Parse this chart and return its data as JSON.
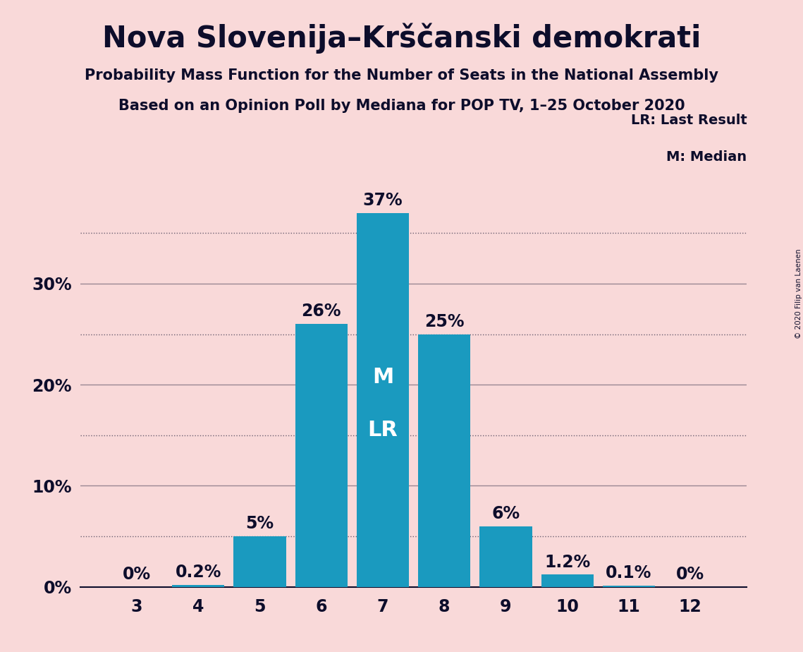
{
  "title": "Nova Slovenija–Krščanski demokrati",
  "subtitle1": "Probability Mass Function for the Number of Seats in the National Assembly",
  "subtitle2": "Based on an Opinion Poll by Mediana for POP TV, 1–25 October 2020",
  "copyright": "© 2020 Filip van Laenen",
  "categories": [
    3,
    4,
    5,
    6,
    7,
    8,
    9,
    10,
    11,
    12
  ],
  "values": [
    0.0,
    0.2,
    5.0,
    26.0,
    37.0,
    25.0,
    6.0,
    1.2,
    0.1,
    0.0
  ],
  "labels": [
    "0%",
    "0.2%",
    "5%",
    "26%",
    "37%",
    "25%",
    "6%",
    "1.2%",
    "0.1%",
    "0%"
  ],
  "bar_color": "#1a9abf",
  "background_color": "#f9d9d9",
  "text_color": "#0d0d2b",
  "median_bar": 7,
  "last_result_bar": 7,
  "median_label": "M",
  "last_result_label": "LR",
  "bar_label_color_dark": "#0d0d2b",
  "bar_label_color_light": "#f5e8e8",
  "ytick_solid": [
    0,
    10,
    20,
    30
  ],
  "ytick_dotted": [
    5,
    15,
    25,
    35
  ],
  "ytick_labels_pos": [
    0,
    10,
    20,
    30
  ],
  "ytick_label_strs": [
    "0%",
    "10%",
    "20%",
    "30%"
  ],
  "ylim": [
    0,
    40
  ],
  "grid_color": "#0d0d2b",
  "legend_lr": "LR: Last Result",
  "legend_m": "M: Median",
  "title_fontsize": 30,
  "subtitle_fontsize": 15,
  "bar_label_fontsize": 17,
  "axis_fontsize": 17,
  "inner_label_fontsize": 22
}
